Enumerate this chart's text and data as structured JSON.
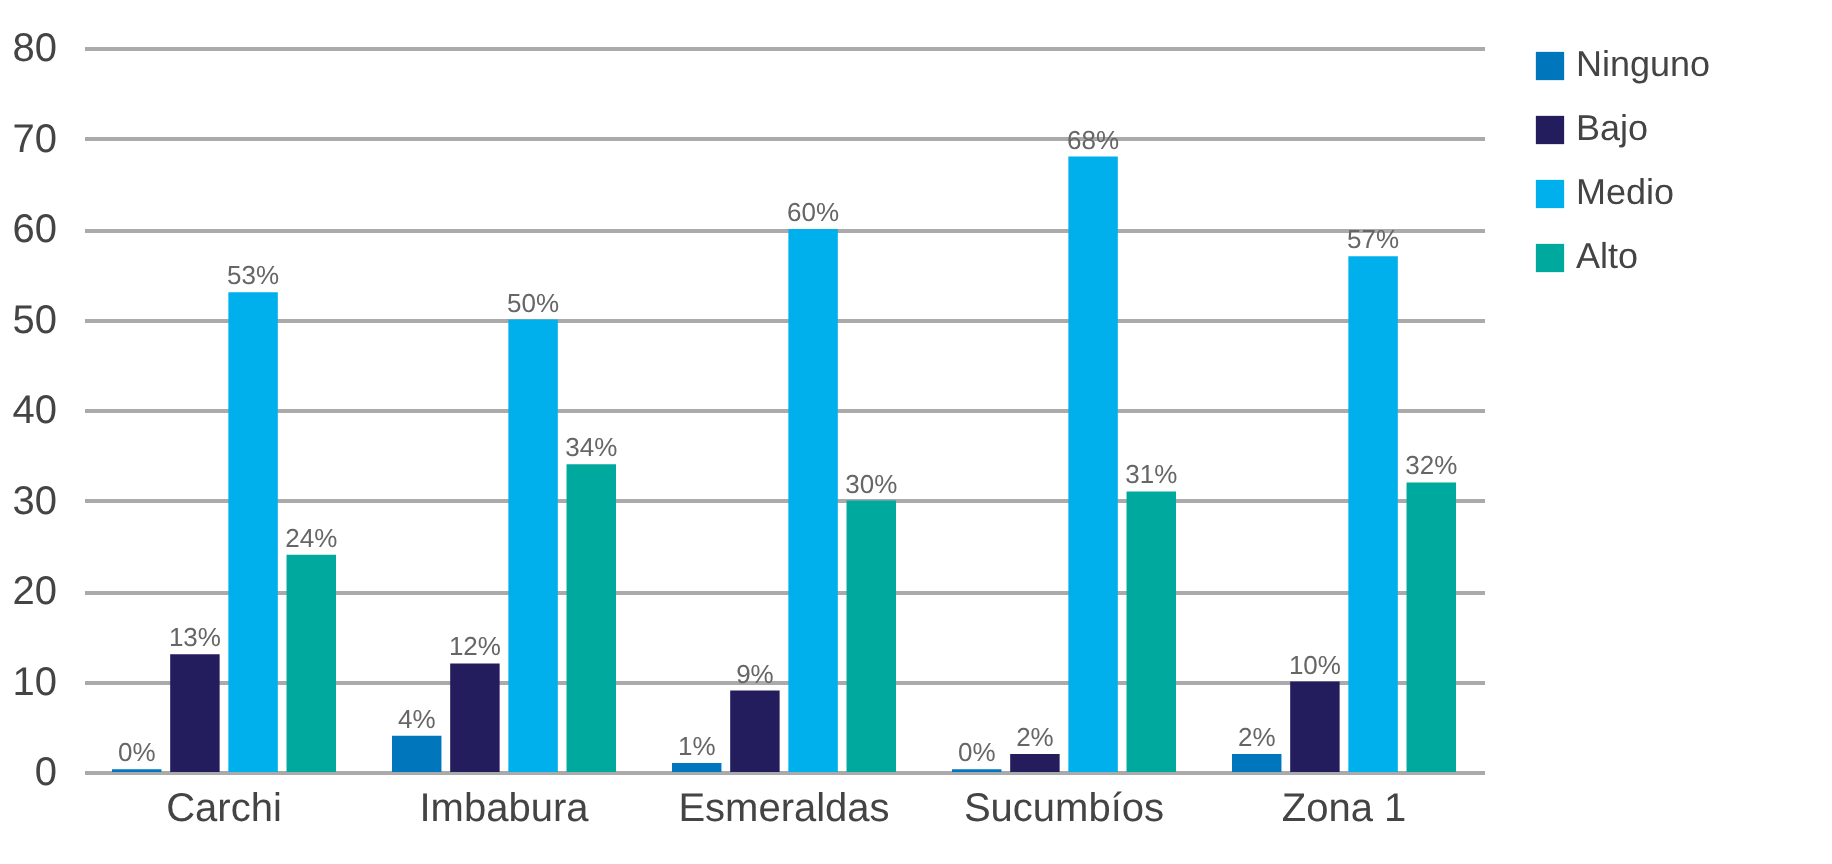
{
  "chart_data": {
    "type": "bar",
    "categories": [
      "Carchi",
      "Imbabura",
      "Esmeraldas",
      "Sucumbíos",
      "Zona 1"
    ],
    "series": [
      {
        "name": "Ninguno",
        "color": "#0077bd",
        "values": [
          0.3,
          4,
          1,
          0.3,
          2
        ],
        "value_labels": [
          "0%",
          "4%",
          "1%",
          "0%",
          "2%"
        ]
      },
      {
        "name": "Bajo",
        "color": "#231d5e",
        "values": [
          13,
          12,
          9,
          2,
          10
        ],
        "value_labels": [
          "13%",
          "12%",
          "9%",
          "2%",
          "10%"
        ]
      },
      {
        "name": "Medio",
        "color": "#00b0ec",
        "values": [
          53,
          50,
          60,
          68,
          57
        ],
        "value_labels": [
          "53%",
          "50%",
          "60%",
          "68%",
          "57%"
        ]
      },
      {
        "name": "Alto",
        "color": "#00a99d",
        "values": [
          24,
          34,
          30,
          31,
          32
        ],
        "value_labels": [
          "24%",
          "34%",
          "30%",
          "31%",
          "32%"
        ]
      }
    ],
    "ylim": [
      0,
      80
    ],
    "yticks": [
      0,
      10,
      20,
      30,
      40,
      50,
      60,
      70,
      80
    ],
    "grid": "y",
    "legend": "top right"
  }
}
